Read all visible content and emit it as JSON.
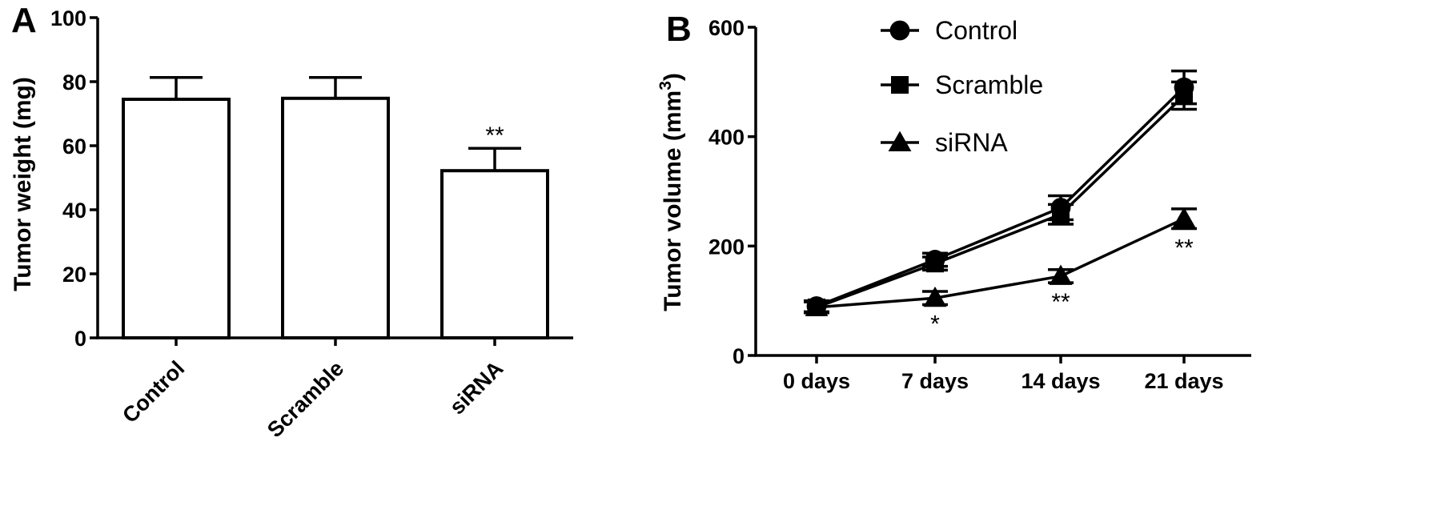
{
  "chart_data": [
    {
      "panel_label": "A",
      "type": "bar",
      "categories": [
        "Control",
        "Scramble",
        "siRNA"
      ],
      "values": [
        74.5,
        74.8,
        52.2
      ],
      "errors": [
        6.8,
        6.5,
        7.0
      ],
      "annotations": [
        "",
        "",
        "**"
      ],
      "title": "",
      "xlabel": "",
      "ylabel": "Tumor weight (mg)",
      "ylim": [
        0,
        100
      ],
      "yticks": [
        0,
        20,
        40,
        60,
        80,
        100
      ],
      "grid": false,
      "legend": "none",
      "bar_fill": "#ffffff",
      "stroke_color": "#000000"
    },
    {
      "panel_label": "B",
      "type": "line",
      "x": [
        "0 days",
        "7 days",
        "14 days",
        "21 days"
      ],
      "series": [
        {
          "name": "Control",
          "marker": "circle",
          "values": [
            90,
            175,
            270,
            490
          ],
          "errors": [
            10,
            12,
            22,
            30
          ],
          "annotations": [
            "",
            "",
            "",
            ""
          ]
        },
        {
          "name": "Scramble",
          "marker": "square",
          "values": [
            88,
            168,
            258,
            475
          ],
          "errors": [
            10,
            12,
            18,
            25
          ],
          "annotations": [
            "",
            "",
            "",
            ""
          ]
        },
        {
          "name": "siRNA",
          "marker": "triangle",
          "values": [
            88,
            105,
            145,
            250
          ],
          "errors": [
            10,
            12,
            12,
            18
          ],
          "annotations": [
            "",
            "*",
            "**",
            "**"
          ]
        }
      ],
      "title": "",
      "xlabel": "",
      "ylabel": "Tumor volume (mm",
      "ylabel_superscript": "3",
      "ylabel_close": ")",
      "ylim": [
        0,
        600
      ],
      "yticks": [
        0,
        200,
        400,
        600
      ],
      "grid": false,
      "legend": "top-left"
    }
  ]
}
